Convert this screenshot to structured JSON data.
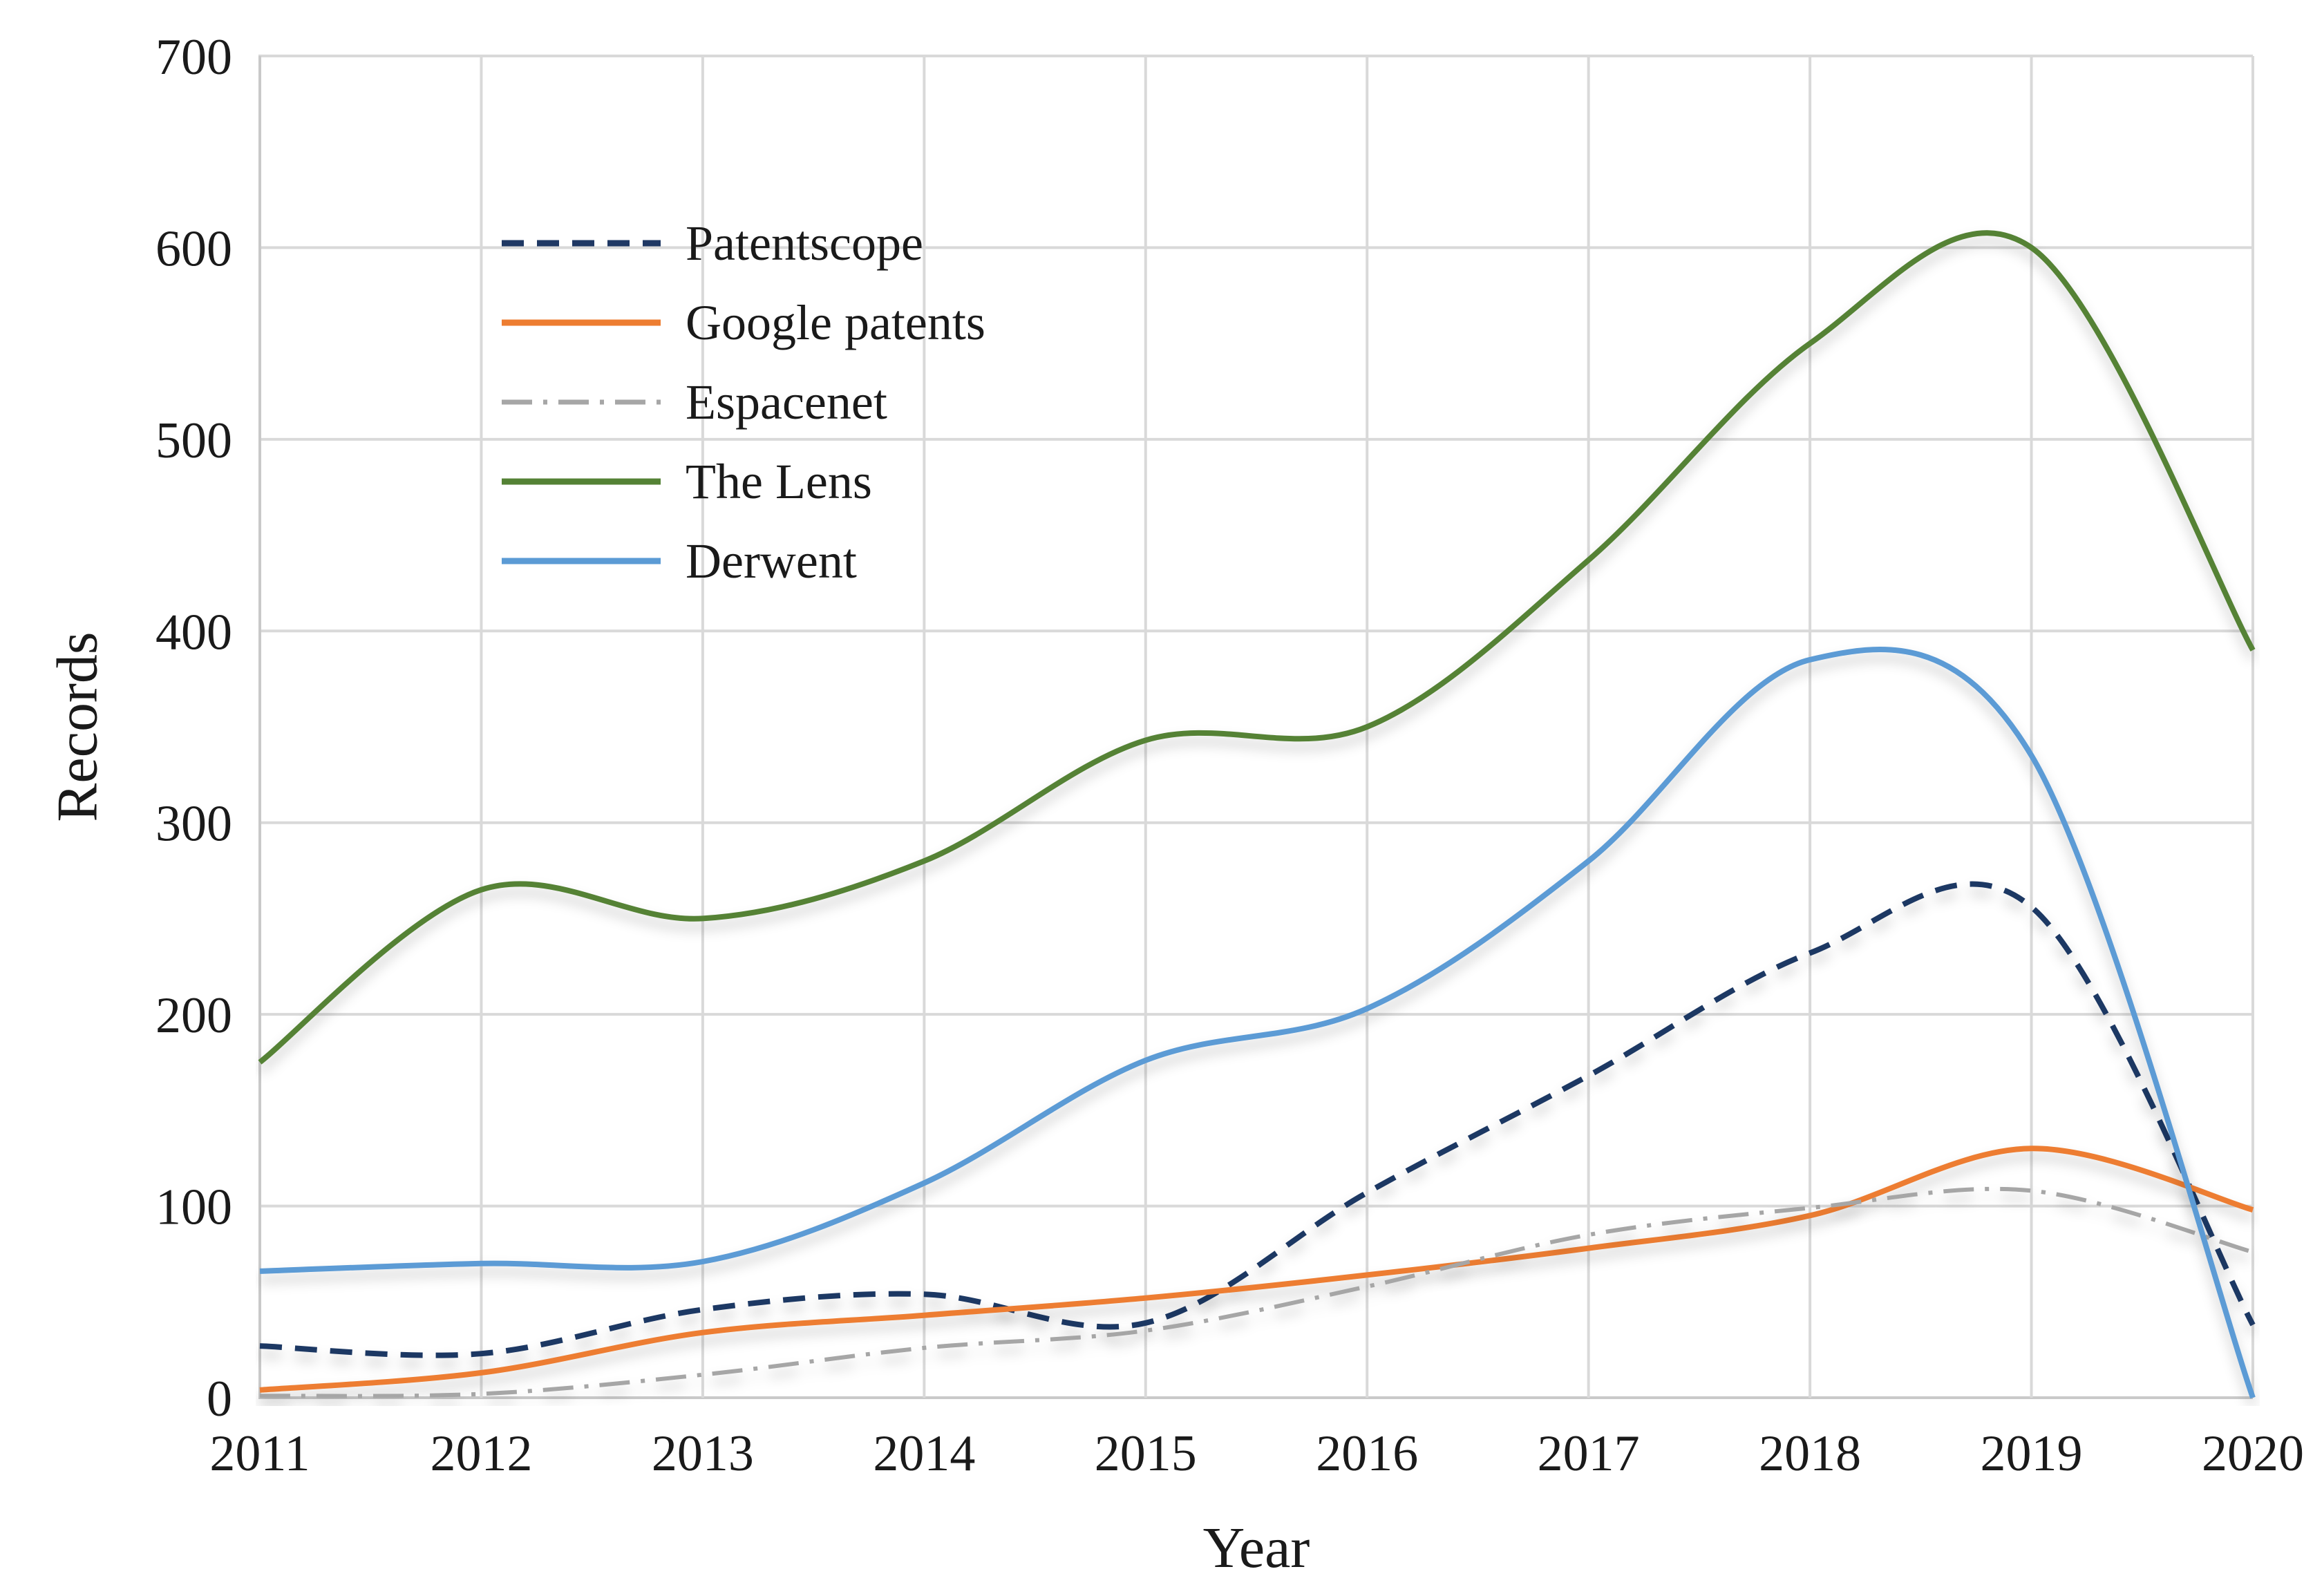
{
  "figure": {
    "background": "#ffffff",
    "text_color": "#1a1a1a",
    "gridline_color": "#d9d9d9"
  },
  "chart_data": {
    "type": "line",
    "title": "",
    "xlabel": "Year",
    "ylabel": "Records",
    "x": [
      2011,
      2012,
      2013,
      2014,
      2015,
      2016,
      2017,
      2018,
      2019,
      2020
    ],
    "ylim": [
      0,
      700
    ],
    "y_ticks": [
      0,
      100,
      200,
      300,
      400,
      500,
      600,
      700
    ],
    "grid": "both",
    "smoothing": "spline",
    "legend_position": "inside-upper-left",
    "series": [
      {
        "name": "Patentscope",
        "color": "#1F3864",
        "line_style": "dashed",
        "values": [
          27,
          23,
          46,
          54,
          39,
          107,
          168,
          232,
          256,
          38
        ]
      },
      {
        "name": "Google patents",
        "color": "#ED7D31",
        "line_style": "solid",
        "values": [
          4,
          13,
          34,
          43,
          52,
          64,
          78,
          95,
          130,
          98
        ]
      },
      {
        "name": "Espacenet",
        "color": "#A6A6A6",
        "line_style": "dash-dot",
        "values": [
          1,
          2,
          12,
          26,
          35,
          58,
          85,
          99,
          108,
          76
        ]
      },
      {
        "name": "The Lens",
        "color": "#548235",
        "line_style": "solid",
        "values": [
          175,
          265,
          250,
          280,
          343,
          350,
          437,
          550,
          600,
          390
        ]
      },
      {
        "name": "Derwent",
        "color": "#5B9BD5",
        "line_style": "solid",
        "values": [
          66,
          70,
          71,
          112,
          176,
          203,
          280,
          385,
          335,
          0
        ]
      }
    ]
  }
}
